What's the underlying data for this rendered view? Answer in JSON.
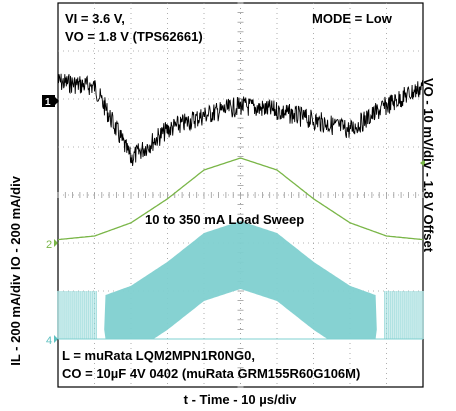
{
  "chart_data": {
    "type": "line",
    "title": "",
    "xlabel": "t - Time - 10 µs/div",
    "ylabels": {
      "right": "VO - 10 mV/div - 1.8 V Offset",
      "left_top": "IO - 200 mA/div",
      "left_bottom": "IL - 200 mA/div"
    },
    "grid": true,
    "grid_divisions": {
      "x": 10,
      "y": 8
    },
    "x": [
      0,
      10,
      20,
      30,
      40,
      50,
      60,
      70,
      80,
      90,
      100
    ],
    "x_unit": "µs",
    "annotations": {
      "vi": "VI = 3.6 V,",
      "vo": "VO = 1.8 V (TPS62661)",
      "mode": "MODE = Low",
      "sweep": "10 to 350 mA Load Sweep",
      "inductor": "L = muRata LQM2MPN1R0NG0,",
      "capacitor": "CO = 10µF 4V 0402 (muRata GRM155R60G106M)"
    },
    "channel_markers": {
      "ch1": "1",
      "ch2": "2",
      "ch4": "4"
    },
    "series": [
      {
        "name": "VO",
        "color": "#000000",
        "unit": "mV offset from 1.8 V",
        "values": [
          4,
          3,
          -12,
          -6,
          -3,
          -1,
          -2,
          -4,
          -6,
          -1,
          3
        ]
      },
      {
        "name": "IO",
        "color": "#7ab648",
        "unit": "mA",
        "values": [
          10,
          25,
          80,
          180,
          300,
          350,
          300,
          180,
          80,
          25,
          10
        ]
      },
      {
        "name": "IL",
        "color": "#7fd0d0",
        "unit": "mA",
        "values": [
          10,
          25,
          80,
          180,
          300,
          350,
          300,
          180,
          80,
          25,
          10
        ]
      }
    ]
  }
}
